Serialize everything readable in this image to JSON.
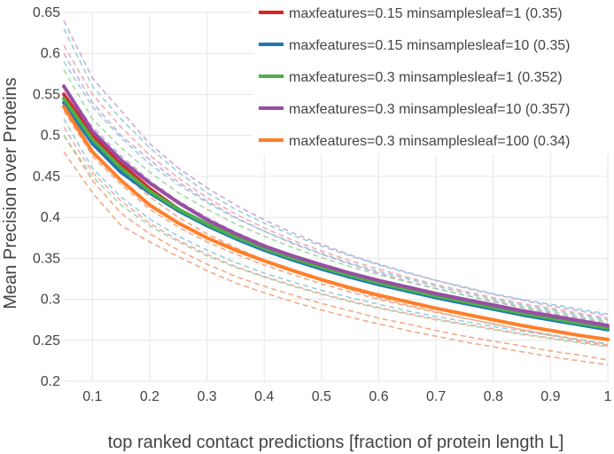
{
  "chart_data": {
    "type": "line",
    "xlabel": "top ranked contact predictions [fraction of protein length L]",
    "ylabel": "Mean Precision over Proteins",
    "xlim": [
      0.05,
      1.0
    ],
    "ylim": [
      0.2,
      0.65
    ],
    "xticks": [
      "0.1",
      "0.2",
      "0.3",
      "0.4",
      "0.5",
      "0.6",
      "0.7",
      "0.8",
      "0.9",
      "1"
    ],
    "yticks": [
      "0.2",
      "0.25",
      "0.3",
      "0.35",
      "0.4",
      "0.45",
      "0.5",
      "0.55",
      "0.6",
      "0.65"
    ],
    "grid": true,
    "legend_position": "top-right",
    "x": [
      0.05,
      0.1,
      0.15,
      0.2,
      0.25,
      0.3,
      0.35,
      0.4,
      0.45,
      0.5,
      0.55,
      0.6,
      0.65,
      0.7,
      0.75,
      0.8,
      0.85,
      0.9,
      0.95,
      1.0
    ],
    "series": [
      {
        "name": "maxfeatures=0.15 minsamplesleaf=1 (0.35)",
        "color": "#d62728",
        "values": [
          0.55,
          0.5,
          0.465,
          0.435,
          0.41,
          0.39,
          0.375,
          0.362,
          0.35,
          0.34,
          0.33,
          0.321,
          0.313,
          0.305,
          0.298,
          0.291,
          0.284,
          0.277,
          0.271,
          0.265
        ]
      },
      {
        "name": "maxfeatures=0.15 minsamplesleaf=10 (0.35)",
        "color": "#1f77b4",
        "values": [
          0.54,
          0.49,
          0.455,
          0.43,
          0.408,
          0.39,
          0.374,
          0.36,
          0.348,
          0.337,
          0.327,
          0.318,
          0.31,
          0.302,
          0.295,
          0.288,
          0.281,
          0.275,
          0.269,
          0.263
        ]
      },
      {
        "name": "maxfeatures=0.3 minsamplesleaf=1 (0.352)",
        "color": "#4daf4a",
        "values": [
          0.545,
          0.495,
          0.46,
          0.432,
          0.41,
          0.392,
          0.376,
          0.362,
          0.35,
          0.339,
          0.329,
          0.32,
          0.312,
          0.304,
          0.297,
          0.29,
          0.283,
          0.277,
          0.271,
          0.265
        ]
      },
      {
        "name": "maxfeatures=0.3 minsamplesleaf=10 (0.357)",
        "color": "#984ea3",
        "values": [
          0.56,
          0.505,
          0.47,
          0.442,
          0.418,
          0.397,
          0.38,
          0.365,
          0.353,
          0.342,
          0.332,
          0.323,
          0.315,
          0.307,
          0.3,
          0.293,
          0.286,
          0.28,
          0.274,
          0.268
        ]
      },
      {
        "name": "maxfeatures=0.3 minsamplesleaf=100 (0.34)",
        "color": "#ff7f2a",
        "values": [
          0.535,
          0.48,
          0.445,
          0.415,
          0.393,
          0.375,
          0.36,
          0.347,
          0.335,
          0.324,
          0.314,
          0.305,
          0.297,
          0.289,
          0.282,
          0.275,
          0.268,
          0.262,
          0.256,
          0.251
        ]
      }
    ],
    "dashed_series": [
      {
        "color": "#f2a07a",
        "values": [
          0.53,
          0.475,
          0.44,
          0.41,
          0.388,
          0.37,
          0.355,
          0.342,
          0.33,
          0.319,
          0.309,
          0.3,
          0.292,
          0.284,
          0.277,
          0.27,
          0.263,
          0.257,
          0.251,
          0.245
        ]
      },
      {
        "color": "#f2a07a",
        "values": [
          0.5,
          0.445,
          0.405,
          0.38,
          0.36,
          0.343,
          0.328,
          0.316,
          0.305,
          0.295,
          0.286,
          0.277,
          0.27,
          0.262,
          0.255,
          0.249,
          0.243,
          0.237,
          0.232,
          0.226
        ]
      },
      {
        "color": "#f2a07a",
        "values": [
          0.48,
          0.43,
          0.39,
          0.37,
          0.352,
          0.335,
          0.32,
          0.308,
          0.297,
          0.287,
          0.278,
          0.27,
          0.262,
          0.255,
          0.248,
          0.242,
          0.236,
          0.23,
          0.225,
          0.22
        ]
      },
      {
        "color": "#f2a07a",
        "values": [
          0.545,
          0.495,
          0.455,
          0.425,
          0.4,
          0.38,
          0.363,
          0.348,
          0.335,
          0.323,
          0.312,
          0.302,
          0.293,
          0.285,
          0.277,
          0.27,
          0.263,
          0.256,
          0.25,
          0.244
        ]
      },
      {
        "color": "#c7a0d6",
        "values": [
          0.64,
          0.57,
          0.53,
          0.49,
          0.46,
          0.436,
          0.415,
          0.397,
          0.381,
          0.367,
          0.354,
          0.343,
          0.333,
          0.323,
          0.314,
          0.306,
          0.299,
          0.292,
          0.286,
          0.28
        ]
      },
      {
        "color": "#c7a0d6",
        "values": [
          0.6,
          0.54,
          0.5,
          0.47,
          0.443,
          0.42,
          0.4,
          0.383,
          0.368,
          0.355,
          0.343,
          0.332,
          0.322,
          0.313,
          0.305,
          0.297,
          0.29,
          0.283,
          0.277,
          0.271
        ]
      },
      {
        "color": "#c7a0d6",
        "values": [
          0.56,
          0.51,
          0.475,
          0.445,
          0.42,
          0.4,
          0.382,
          0.367,
          0.353,
          0.341,
          0.33,
          0.32,
          0.311,
          0.303,
          0.296,
          0.289,
          0.282,
          0.276,
          0.27,
          0.264
        ]
      },
      {
        "color": "#8dc8d8",
        "values": [
          0.63,
          0.56,
          0.52,
          0.485,
          0.455,
          0.43,
          0.41,
          0.393,
          0.378,
          0.365,
          0.353,
          0.342,
          0.332,
          0.323,
          0.315,
          0.307,
          0.3,
          0.294,
          0.288,
          0.282
        ]
      },
      {
        "color": "#8dc8d8",
        "values": [
          0.59,
          0.535,
          0.497,
          0.465,
          0.44,
          0.418,
          0.399,
          0.383,
          0.369,
          0.356,
          0.344,
          0.334,
          0.325,
          0.316,
          0.308,
          0.3,
          0.293,
          0.287,
          0.281,
          0.275
        ]
      },
      {
        "color": "#8dc8d8",
        "values": [
          0.52,
          0.46,
          0.425,
          0.398,
          0.377,
          0.36,
          0.345,
          0.332,
          0.321,
          0.311,
          0.302,
          0.294,
          0.286,
          0.279,
          0.273,
          0.267,
          0.261,
          0.256,
          0.251,
          0.246
        ]
      },
      {
        "color": "#9fd39f",
        "values": [
          0.58,
          0.52,
          0.485,
          0.455,
          0.43,
          0.41,
          0.392,
          0.377,
          0.363,
          0.351,
          0.34,
          0.33,
          0.321,
          0.313,
          0.305,
          0.298,
          0.291,
          0.285,
          0.279,
          0.273
        ]
      },
      {
        "color": "#9fd39f",
        "values": [
          0.5,
          0.45,
          0.415,
          0.39,
          0.37,
          0.353,
          0.339,
          0.327,
          0.316,
          0.306,
          0.297,
          0.289,
          0.282,
          0.275,
          0.269,
          0.263,
          0.257,
          0.252,
          0.247,
          0.242
        ]
      },
      {
        "color": "#f0a3a3",
        "values": [
          0.61,
          0.55,
          0.51,
          0.476,
          0.448,
          0.424,
          0.404,
          0.387,
          0.372,
          0.359,
          0.347,
          0.337,
          0.327,
          0.318,
          0.31,
          0.302,
          0.295,
          0.289,
          0.283,
          0.277
        ]
      },
      {
        "color": "#f0a3a3",
        "values": [
          0.51,
          0.455,
          0.42,
          0.393,
          0.372,
          0.355,
          0.34,
          0.328,
          0.317,
          0.307,
          0.298,
          0.29,
          0.283,
          0.276,
          0.27,
          0.264,
          0.258,
          0.253,
          0.248,
          0.243
        ]
      }
    ]
  }
}
